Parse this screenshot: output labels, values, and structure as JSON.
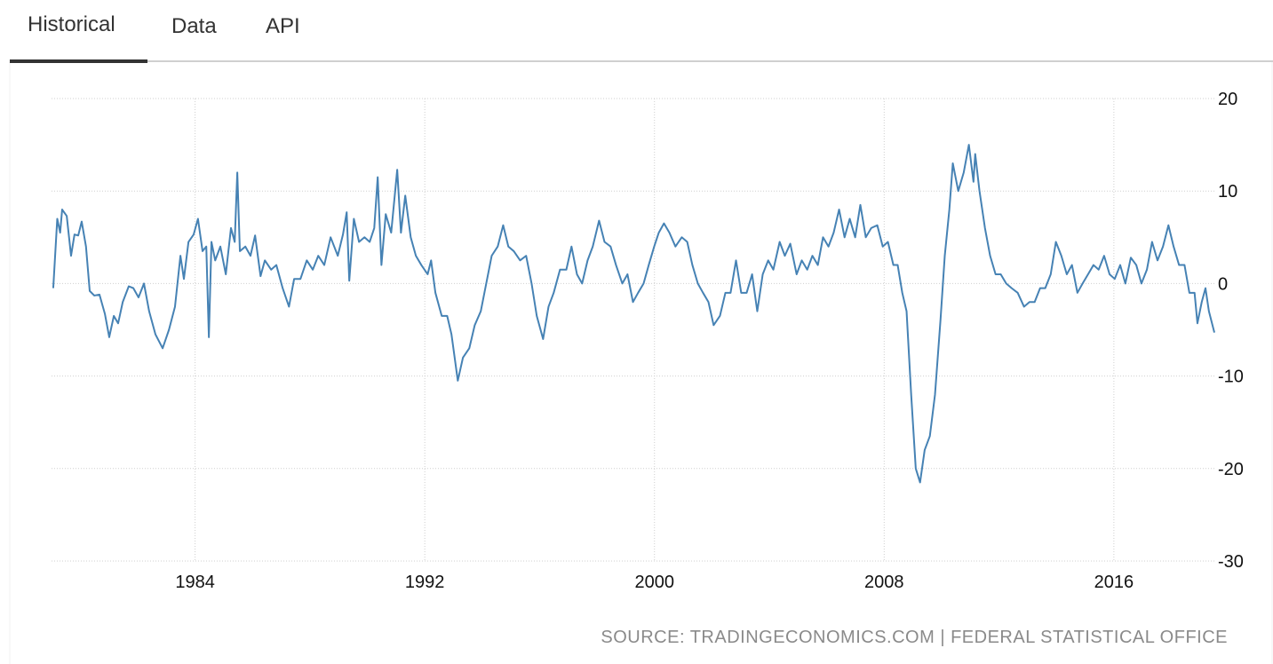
{
  "tabs": [
    "Historical",
    "Data",
    "API"
  ],
  "chart_data": {
    "type": "line",
    "x": [
      1979.06,
      1979.2,
      1979.3,
      1979.37,
      1979.53,
      1979.68,
      1979.8,
      1979.93,
      1980.05,
      1980.2,
      1980.33,
      1980.49,
      1980.67,
      1980.86,
      1981.01,
      1981.17,
      1981.32,
      1981.48,
      1981.69,
      1981.85,
      1982.03,
      1982.22,
      1982.4,
      1982.62,
      1982.87,
      1983.09,
      1983.3,
      1983.49,
      1983.61,
      1983.77,
      1983.95,
      1984.1,
      1984.26,
      1984.39,
      1984.48,
      1984.57,
      1984.7,
      1984.88,
      1985.07,
      1985.25,
      1985.38,
      1985.47,
      1985.56,
      1985.75,
      1985.93,
      1986.09,
      1986.28,
      1986.43,
      1986.65,
      1986.83,
      1987.05,
      1987.27,
      1987.45,
      1987.67,
      1987.89,
      1988.1,
      1988.29,
      1988.5,
      1988.72,
      1988.97,
      1989.15,
      1989.28,
      1989.37,
      1989.53,
      1989.71,
      1989.9,
      1990.08,
      1990.24,
      1990.36,
      1990.49,
      1990.64,
      1990.83,
      1991.04,
      1991.17,
      1991.32,
      1991.51,
      1991.69,
      1991.88,
      1992.1,
      1992.22,
      1992.37,
      1992.59,
      1992.78,
      1992.93,
      1993.15,
      1993.33,
      1993.55,
      1993.74,
      1993.95,
      1994.14,
      1994.33,
      1994.54,
      1994.73,
      1994.91,
      1995.1,
      1995.32,
      1995.53,
      1995.72,
      1995.9,
      1996.12,
      1996.31,
      1996.49,
      1996.71,
      1996.93,
      1997.11,
      1997.3,
      1997.48,
      1997.67,
      1997.85,
      1998.07,
      1998.26,
      1998.47,
      1998.66,
      1998.88,
      1999.06,
      1999.25,
      1999.43,
      1999.62,
      1999.8,
      1999.99,
      2000.15,
      2000.33,
      2000.52,
      2000.73,
      2000.95,
      2001.14,
      2001.32,
      2001.51,
      2001.69,
      2001.88,
      2002.06,
      2002.28,
      2002.47,
      2002.65,
      2002.84,
      2003.02,
      2003.21,
      2003.4,
      2003.58,
      2003.77,
      2003.96,
      2004.14,
      2004.36,
      2004.54,
      2004.73,
      2004.95,
      2005.13,
      2005.32,
      2005.5,
      2005.69,
      2005.87,
      2006.06,
      2006.24,
      2006.43,
      2006.62,
      2006.8,
      2006.99,
      2007.17,
      2007.36,
      2007.55,
      2007.76,
      2007.95,
      2008.13,
      2008.32,
      2008.47,
      2008.63,
      2008.78,
      2008.94,
      2009.1,
      2009.25,
      2009.41,
      2009.59,
      2009.77,
      2009.96,
      2010.11,
      2010.27,
      2010.39,
      2010.58,
      2010.77,
      2010.95,
      2011.11,
      2011.17,
      2011.32,
      2011.51,
      2011.69,
      2011.88,
      2012.06,
      2012.25,
      2012.44,
      2012.65,
      2012.87,
      2013.06,
      2013.24,
      2013.43,
      2013.61,
      2013.8,
      2013.98,
      2014.17,
      2014.36,
      2014.54,
      2014.73,
      2014.91,
      2015.1,
      2015.29,
      2015.47,
      2015.66,
      2015.85,
      2016.03,
      2016.22,
      2016.4,
      2016.59,
      2016.78,
      2016.96,
      2017.15,
      2017.33,
      2017.52,
      2017.71,
      2017.9,
      2018.08,
      2018.27,
      2018.46,
      2018.63,
      2018.81,
      2018.91,
      2019.06,
      2019.19,
      2019.31,
      2019.5
    ],
    "values": [
      -0.5,
      7,
      5.5,
      8,
      7.3,
      3,
      5.3,
      5.2,
      6.7,
      4,
      -0.8,
      -1.3,
      -1.2,
      -3.3,
      -5.8,
      -3.5,
      -4.3,
      -2,
      -0.3,
      -0.5,
      -1.5,
      0,
      -3,
      -5.5,
      -7,
      -5,
      -2.5,
      3,
      0.5,
      4.5,
      5.3,
      7,
      3.5,
      4,
      -5.8,
      4.5,
      2.5,
      4,
      1,
      6,
      4.5,
      12,
      3.5,
      4,
      3,
      5.2,
      0.8,
      2.5,
      1.5,
      2,
      -0.5,
      -2.5,
      0.5,
      0.5,
      2.5,
      1.5,
      3,
      2,
      5,
      3,
      5.3,
      7.7,
      0.3,
      7,
      4.5,
      5,
      4.5,
      6,
      11.5,
      2,
      7.5,
      5.5,
      12.3,
      5.5,
      9.5,
      5,
      3,
      2,
      1,
      2.5,
      -1,
      -3.5,
      -3.5,
      -5.5,
      -10.5,
      -8,
      -7,
      -4.5,
      -3,
      0,
      3,
      4,
      6.3,
      4,
      3.5,
      2.5,
      3,
      0,
      -3.5,
      -6,
      -2.5,
      -1,
      1.5,
      1.5,
      4,
      1,
      0,
      2.5,
      4,
      6.8,
      4.5,
      4,
      2,
      0,
      1,
      -2,
      -1,
      0,
      2,
      4,
      5.5,
      6.5,
      5.5,
      4,
      5,
      4.5,
      2,
      0,
      -1,
      -2,
      -4.5,
      -3.5,
      -1,
      -1,
      2.5,
      -1,
      -1,
      1,
      -3,
      1,
      2.5,
      1.5,
      4.5,
      3,
      4.3,
      1,
      2.5,
      1.5,
      3,
      2,
      5,
      4,
      5.5,
      8,
      5,
      7,
      5,
      8.5,
      5,
      6,
      6.3,
      4,
      4.5,
      2,
      2,
      -1,
      -3,
      -12,
      -20,
      -21.5,
      -18,
      -16.5,
      -12,
      -4,
      3,
      8,
      13,
      10,
      12,
      15,
      11,
      14,
      10,
      6,
      3,
      1,
      1,
      0,
      -0.5,
      -1,
      -2.5,
      -2,
      -2,
      -0.5,
      -0.5,
      1,
      4.5,
      3,
      1,
      2,
      -1,
      0,
      1,
      2,
      1.5,
      3,
      1,
      0.5,
      2,
      0,
      2.8,
      2,
      0,
      1.5,
      4.5,
      2.5,
      4,
      6.3,
      4,
      2,
      2,
      -1,
      -1,
      -4.3,
      -2,
      -0.5,
      -3,
      -5.3
    ],
    "color": "#4682b4",
    "xlim": [
      1979,
      2019.5
    ],
    "xticks": [
      1984,
      1992,
      2000,
      2008,
      2016
    ],
    "ylim": [
      -30,
      20
    ],
    "yticks": [
      20,
      10,
      0,
      -10,
      -20,
      -30
    ],
    "grid": true,
    "source": "SOURCE: TRADINGECONOMICS.COM | FEDERAL STATISTICAL OFFICE"
  }
}
